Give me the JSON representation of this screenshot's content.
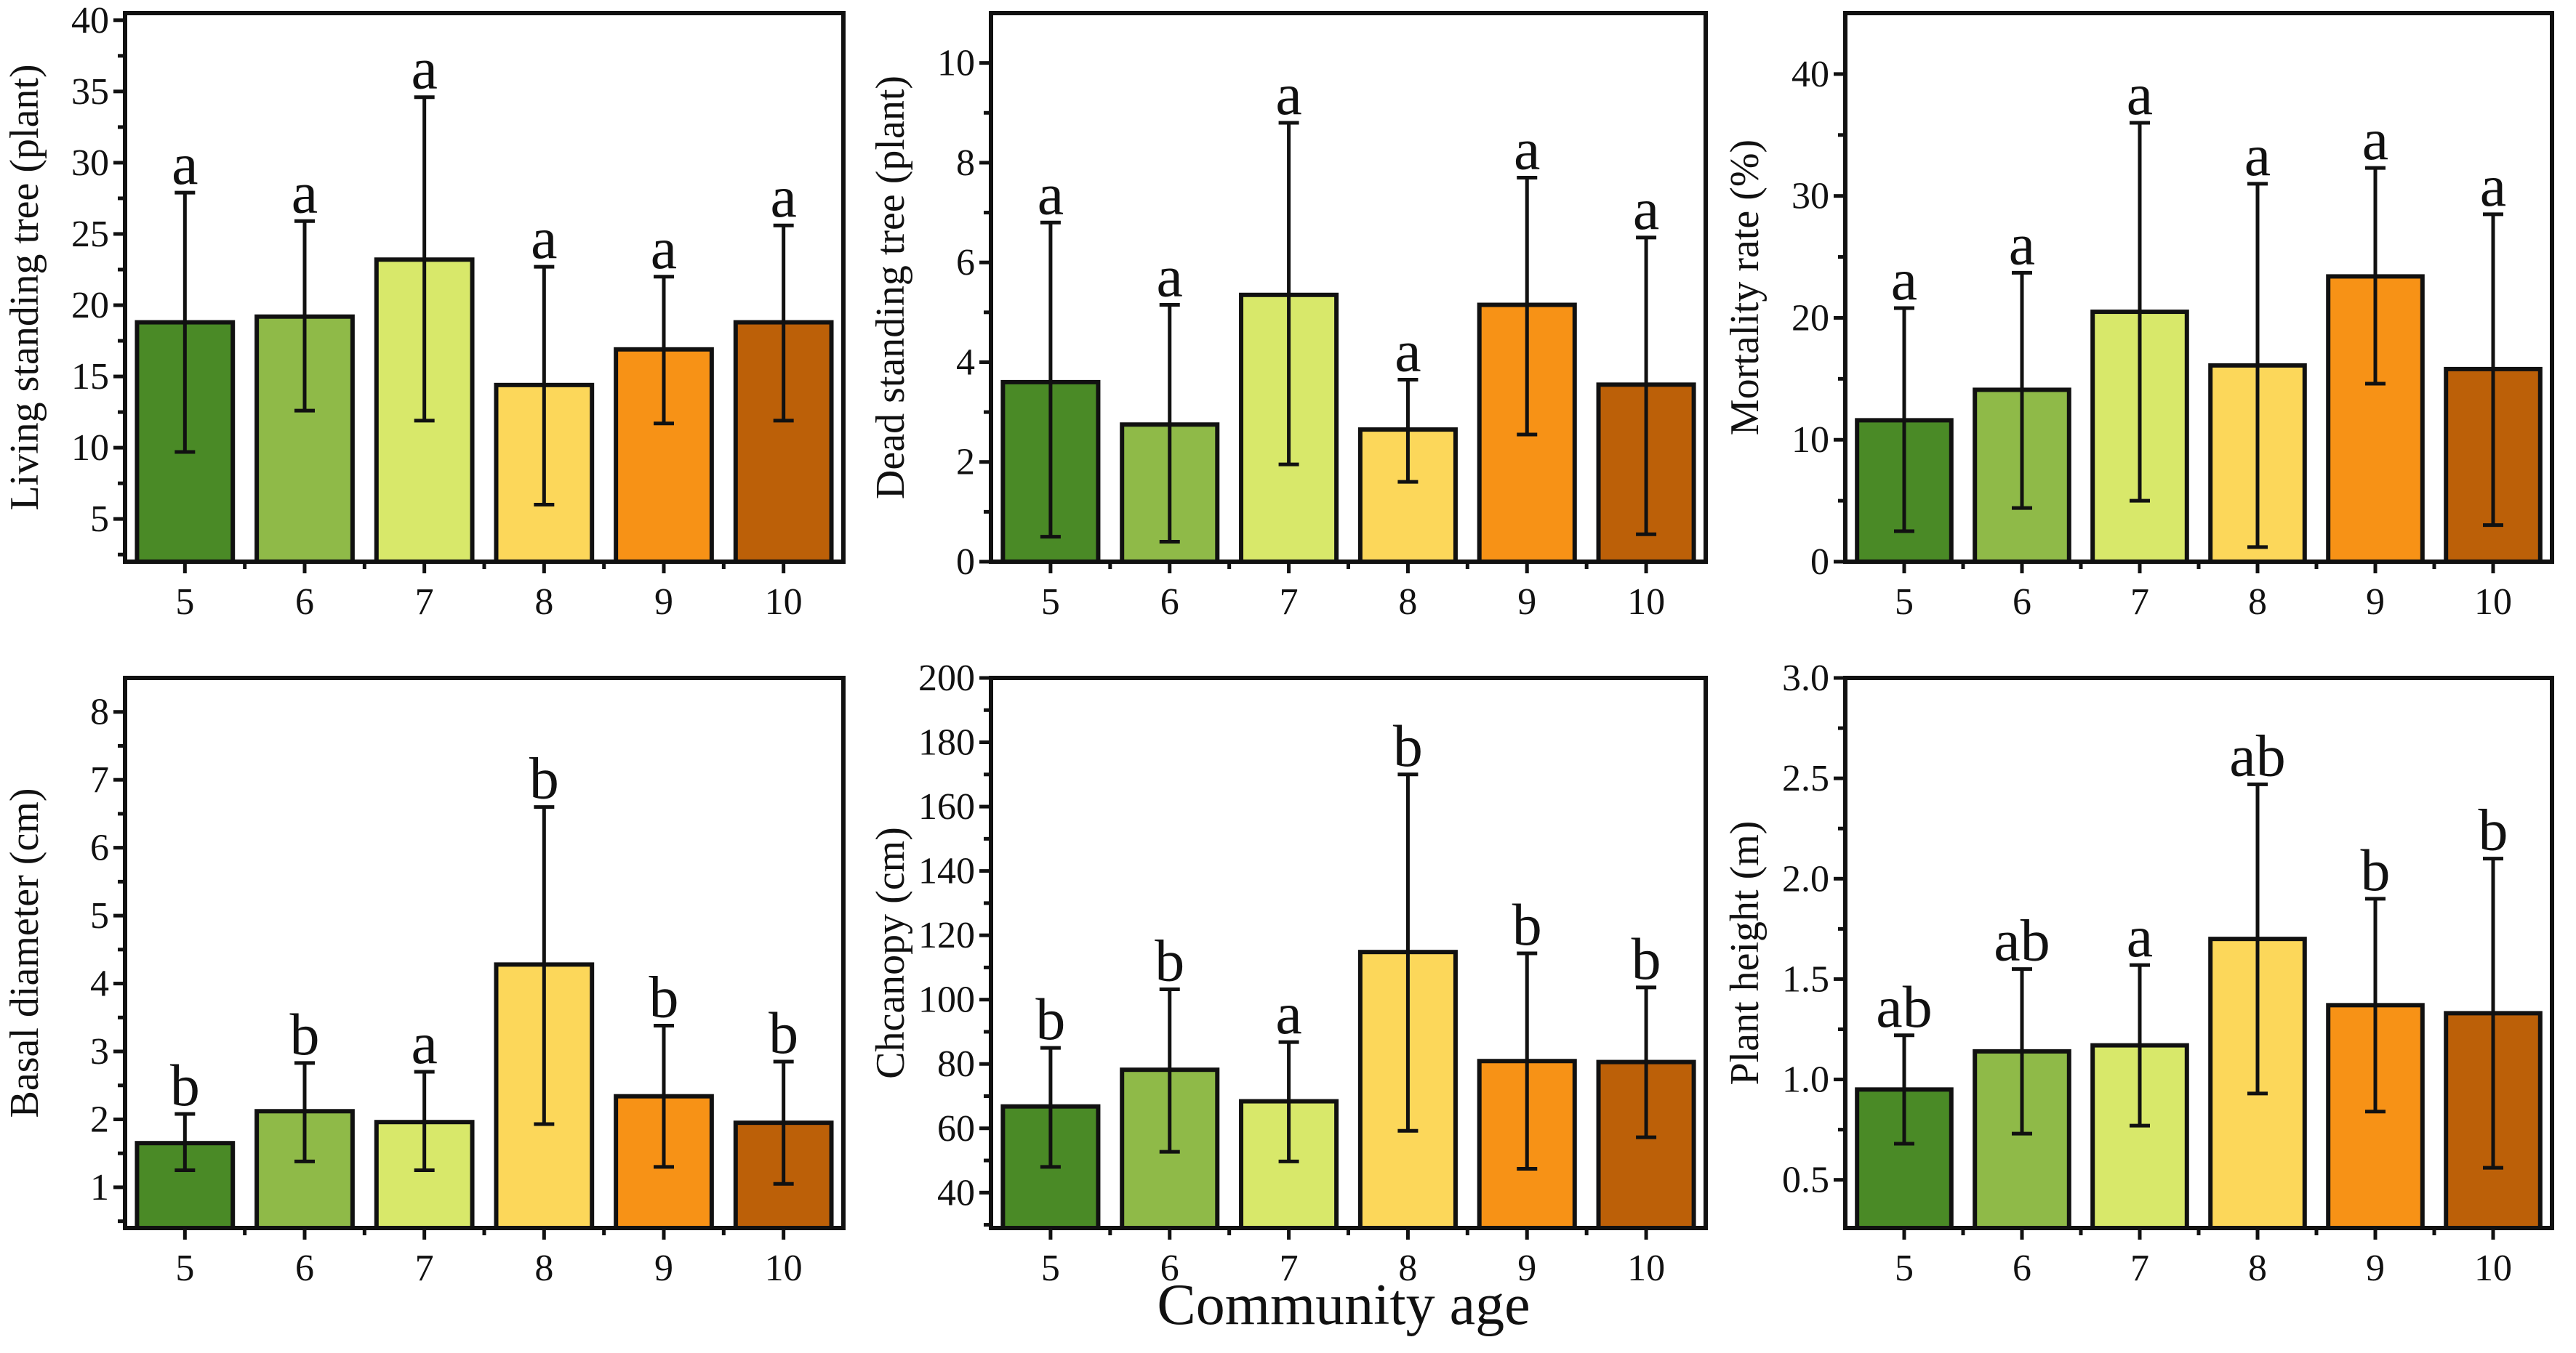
{
  "figure": {
    "shared_xlabel": "Community age"
  },
  "chart_data": [
    {
      "type": "bar",
      "title": "",
      "xlabel": "",
      "ylabel": "Living standing tree (plant)",
      "categories": [
        "5",
        "6",
        "7",
        "8",
        "9",
        "10"
      ],
      "values": [
        18.8,
        19.2,
        23.2,
        14.4,
        16.9,
        18.8
      ],
      "error_low": [
        9.7,
        12.6,
        11.9,
        6.0,
        11.7,
        11.9
      ],
      "error_high": [
        27.9,
        25.9,
        34.6,
        22.7,
        22.0,
        25.6
      ],
      "significance": [
        "a",
        "a",
        "a",
        "a",
        "a",
        "a"
      ],
      "ylim": [
        2,
        40.5
      ],
      "yticks": [
        5,
        10,
        15,
        20,
        25,
        30,
        35,
        40
      ],
      "grid": false
    },
    {
      "type": "bar",
      "title": "",
      "xlabel": "",
      "ylabel": "Dead standing tree (plant)",
      "categories": [
        "5",
        "6",
        "7",
        "8",
        "9",
        "10"
      ],
      "values": [
        3.6,
        2.75,
        5.35,
        2.65,
        5.15,
        3.55
      ],
      "error_low": [
        0.5,
        0.4,
        1.95,
        1.6,
        2.55,
        0.55
      ],
      "error_high": [
        6.8,
        5.15,
        8.8,
        3.65,
        7.7,
        6.5
      ],
      "significance": [
        "a",
        "a",
        "a",
        "a",
        "a",
        "a"
      ],
      "ylim": [
        0,
        11
      ],
      "yticks": [
        0,
        2,
        4,
        6,
        8,
        10
      ],
      "grid": false
    },
    {
      "type": "bar",
      "title": "",
      "xlabel": "",
      "ylabel": "Mortality rate (%)",
      "categories": [
        "5",
        "6",
        "7",
        "8",
        "9",
        "10"
      ],
      "values": [
        11.6,
        14.1,
        20.5,
        16.1,
        23.4,
        15.8
      ],
      "error_low": [
        2.5,
        4.4,
        5.0,
        1.2,
        14.6,
        3.0
      ],
      "error_high": [
        20.8,
        23.7,
        36.0,
        31.0,
        32.3,
        28.5
      ],
      "significance": [
        "a",
        "a",
        "a",
        "a",
        "a",
        "a"
      ],
      "ylim": [
        0,
        45
      ],
      "yticks": [
        0,
        10,
        20,
        30,
        40
      ],
      "grid": false
    },
    {
      "type": "bar",
      "title": "",
      "xlabel": "",
      "ylabel": "Basal diameter (cm)",
      "categories": [
        "5",
        "6",
        "7",
        "8",
        "9",
        "10"
      ],
      "values": [
        1.65,
        2.12,
        1.96,
        4.28,
        2.34,
        1.95
      ],
      "error_low": [
        1.25,
        1.38,
        1.25,
        1.93,
        1.3,
        1.05
      ],
      "error_high": [
        2.08,
        2.83,
        2.7,
        6.6,
        3.38,
        2.85
      ],
      "significance": [
        "b",
        "b",
        "a",
        "b",
        "b",
        "b"
      ],
      "ylim": [
        0.4,
        8.5
      ],
      "yticks": [
        1,
        2,
        3,
        4,
        5,
        6,
        7,
        8
      ],
      "grid": false
    },
    {
      "type": "bar",
      "title": "",
      "xlabel": "Community age",
      "ylabel": "Chcanopy (cm)",
      "categories": [
        "5",
        "6",
        "7",
        "8",
        "9",
        "10"
      ],
      "values": [
        66.8,
        78.2,
        68.4,
        114.8,
        80.9,
        80.6
      ],
      "error_low": [
        48.0,
        52.7,
        49.7,
        59.2,
        47.4,
        57.2
      ],
      "error_high": [
        85.0,
        103.2,
        86.8,
        170.0,
        114.4,
        103.8
      ],
      "significance": [
        "b",
        "b",
        "a",
        "b",
        "b",
        "b"
      ],
      "ylim": [
        29,
        200
      ],
      "yticks": [
        40,
        60,
        80,
        100,
        120,
        140,
        160,
        180,
        200
      ],
      "grid": false
    },
    {
      "type": "bar",
      "title": "",
      "xlabel": "",
      "ylabel": "Plant height (m)",
      "categories": [
        "5",
        "6",
        "7",
        "8",
        "9",
        "10"
      ],
      "values": [
        0.95,
        1.14,
        1.17,
        1.7,
        1.37,
        1.33
      ],
      "error_low": [
        0.68,
        0.73,
        0.77,
        0.93,
        0.84,
        0.56
      ],
      "error_high": [
        1.22,
        1.55,
        1.57,
        2.47,
        1.9,
        2.1
      ],
      "significance": [
        "ab",
        "ab",
        "a",
        "ab",
        "b",
        "b"
      ],
      "ylim": [
        0.26,
        3.0
      ],
      "yticks": [
        0.5,
        1.0,
        1.5,
        2.0,
        2.5,
        3.0
      ],
      "ytick_labels": [
        "0.5",
        "1.0",
        "1.5",
        "2.0",
        "2.5",
        "3.0"
      ],
      "grid": false
    }
  ],
  "colors": {
    "bars": [
      "#4a8a26",
      "#8fba48",
      "#d8e86a",
      "#fcd75a",
      "#f79216",
      "#bc6008"
    ],
    "axis": "#111111",
    "background": "#ffffff"
  }
}
